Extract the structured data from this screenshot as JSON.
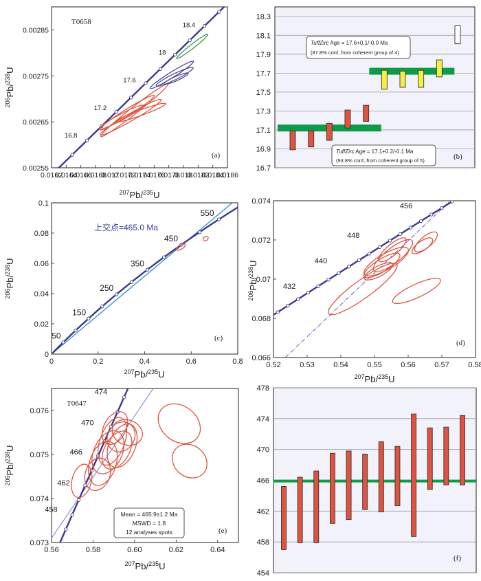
{
  "chart_data": [
    {
      "id": "a",
      "type": "concordia",
      "panel_label": "(a)",
      "sample_label": "T0658",
      "xlabel": "207Pb/235U",
      "ylabel": "206Pb/238U",
      "xlim": [
        0.0162,
        0.0186
      ],
      "ylim": [
        0.00255,
        0.0029
      ],
      "x_ticks": [
        "0.0162",
        "0.0164",
        "0.0166",
        "0.0168",
        "0.017",
        "0.0172",
        "0.0174",
        "0.0176",
        "0.0178",
        "0.018",
        "0.0182",
        "0.0184",
        "0.0186"
      ],
      "x_tick_values": [
        0.0162,
        0.0164,
        0.0166,
        0.0168,
        0.017,
        0.0172,
        0.0174,
        0.0176,
        0.0178,
        0.018,
        0.0182,
        0.0184,
        0.0186
      ],
      "y_ticks": [
        "0.00255",
        "0.00265",
        "0.00275",
        "0.00285"
      ],
      "y_tick_values": [
        0.00255,
        0.00265,
        0.00275,
        0.00285
      ],
      "concordia_labels": [
        {
          "text": "16.8",
          "x": 0.01657,
          "y": 0.00261
        },
        {
          "text": "17.2",
          "x": 0.01697,
          "y": 0.00267
        },
        {
          "text": "17.6",
          "x": 0.01737,
          "y": 0.00273
        },
        {
          "text": "18",
          "x": 0.01778,
          "y": 0.00279
        },
        {
          "text": "18.4",
          "x": 0.01818,
          "y": 0.00285
        }
      ],
      "ellipses": [
        {
          "color": "#e0533f",
          "cx": 0.01733,
          "cy": 0.002675,
          "rx": 0.00058,
          "ry": 7.5e-06,
          "angle": -38
        },
        {
          "color": "#e0533f",
          "cx": 0.01723,
          "cy": 0.00267,
          "rx": 0.00044,
          "ry": 7e-06,
          "angle": -32
        },
        {
          "color": "#e0533f",
          "cx": 0.01715,
          "cy": 0.00266,
          "rx": 0.00034,
          "ry": 6.5e-06,
          "angle": -28
        },
        {
          "color": "#e0533f",
          "cx": 0.01742,
          "cy": 0.00267,
          "rx": 0.00036,
          "ry": 6e-06,
          "angle": -20
        },
        {
          "color": "#e0533f",
          "cx": 0.01728,
          "cy": 0.00266,
          "rx": 0.00048,
          "ry": 8e-06,
          "angle": -30
        },
        {
          "color": "#4a4aa0",
          "cx": 0.01788,
          "cy": 0.002748,
          "rx": 0.00028,
          "ry": 6.5e-06,
          "angle": -26
        },
        {
          "color": "#4a4aa0",
          "cx": 0.0179,
          "cy": 0.002744,
          "rx": 0.00018,
          "ry": 4.8e-06,
          "angle": -24
        },
        {
          "color": "#4a4aa0",
          "cx": 0.01784,
          "cy": 0.002752,
          "rx": 0.00035,
          "ry": 6e-06,
          "angle": -32
        },
        {
          "color": "#3a9a4a",
          "cx": 0.01812,
          "cy": 0.002814,
          "rx": 0.00027,
          "ry": 3.8e-06,
          "angle": -38
        }
      ]
    },
    {
      "id": "b",
      "type": "weighted-mean",
      "panel_label": "(b)",
      "ylim": [
        16.7,
        18.4
      ],
      "y_ticks": [
        "16.7",
        "16.9",
        "17.1",
        "17.3",
        "17.5",
        "17.7",
        "17.9",
        "18.1",
        "18.3"
      ],
      "y_tick_values": [
        16.7,
        16.9,
        17.1,
        17.3,
        17.5,
        17.7,
        17.9,
        18.1,
        18.3
      ],
      "bars": [
        {
          "low": 16.89,
          "high": 17.09,
          "color": "#e0533f"
        },
        {
          "low": 16.92,
          "high": 17.09,
          "color": "#e0533f"
        },
        {
          "low": 16.99,
          "high": 17.17,
          "color": "#e0533f"
        },
        {
          "low": 17.12,
          "high": 17.31,
          "color": "#e0533f"
        },
        {
          "low": 17.19,
          "high": 17.36,
          "color": "#e0533f"
        },
        {
          "low": 17.53,
          "high": 17.73,
          "color": "#f5ee44"
        },
        {
          "low": 17.55,
          "high": 17.72,
          "color": "#f5ee44"
        },
        {
          "low": 17.55,
          "high": 17.73,
          "color": "#f5ee44"
        },
        {
          "low": 17.66,
          "high": 17.84,
          "color": "#f5ee44"
        },
        {
          "low": 18.01,
          "high": 18.2,
          "color": "#ffffff"
        }
      ],
      "mean_bands": [
        {
          "value": 17.12,
          "from_bar": 0,
          "to_bar": 4
        },
        {
          "value": 17.72,
          "from_bar": 5,
          "to_bar": 8
        }
      ],
      "annotations": [
        {
          "italic": "TuffZirc",
          "line1": "Age = 17.6+0.1/-0.0  Ma",
          "line2": "(87.8% conf, from coherent group of 4)"
        },
        {
          "italic": "TuffZirc",
          "line1": "Age = 17.1+0.2/-0.1  Ma",
          "line2": "(93.8% conf, from coherent group of 5)"
        }
      ]
    },
    {
      "id": "c",
      "type": "concordia",
      "panel_label": "(c)",
      "xlabel": "207Pb/235U",
      "ylabel": "206Pb/238U",
      "xlim": [
        0,
        0.8
      ],
      "ylim": [
        0,
        0.1
      ],
      "x_ticks": [
        "0",
        "0.2",
        "0.4",
        "0.6",
        "0.8"
      ],
      "x_tick_values": [
        0,
        0.2,
        0.4,
        0.6,
        0.8
      ],
      "y_ticks": [
        "0",
        "0.02",
        "0.04",
        "0.06",
        "0.08",
        "0.1"
      ],
      "y_tick_values": [
        0,
        0.02,
        0.04,
        0.06,
        0.08,
        0.1
      ],
      "concordia_labels": [
        {
          "text": "50",
          "x": 0.052,
          "y": 0.0079
        },
        {
          "text": "150",
          "x": 0.16,
          "y": 0.0235
        },
        {
          "text": "250",
          "x": 0.278,
          "y": 0.0396
        },
        {
          "text": "350",
          "x": 0.41,
          "y": 0.0557
        },
        {
          "text": "450",
          "x": 0.555,
          "y": 0.0723
        },
        {
          "text": "550",
          "x": 0.71,
          "y": 0.0891
        }
      ],
      "intercept_label": "上交点=465.0 Ma",
      "ellipses": [
        {
          "color": "#e0533f",
          "cx": 0.555,
          "cy": 0.0707,
          "rx": 0.022,
          "ry": 0.0009,
          "angle": -30
        },
        {
          "color": "#e0533f",
          "cx": 0.662,
          "cy": 0.0763,
          "rx": 0.012,
          "ry": 0.0006,
          "angle": -30
        }
      ]
    },
    {
      "id": "d",
      "type": "concordia",
      "panel_label": "(d)",
      "xlabel": "207Pb/235U",
      "ylabel": "206Pb/238U",
      "xlim": [
        0.52,
        0.58
      ],
      "ylim": [
        0.066,
        0.074
      ],
      "x_ticks": [
        "0.52",
        "0.53",
        "0.54",
        "0.55",
        "0.56",
        "0.57",
        "0.58"
      ],
      "x_tick_values": [
        0.52,
        0.53,
        0.54,
        0.55,
        0.56,
        0.57,
        0.58
      ],
      "y_ticks": [
        "0.066",
        "0.068",
        "0.07",
        "0.072",
        "0.074"
      ],
      "y_tick_values": [
        0.066,
        0.068,
        0.07,
        0.072,
        0.074
      ],
      "concordia_labels": [
        {
          "text": "432",
          "x": 0.5278,
          "y": 0.0693
        },
        {
          "text": "440",
          "x": 0.5372,
          "y": 0.0706
        },
        {
          "text": "448",
          "x": 0.5468,
          "y": 0.0719
        },
        {
          "text": "456",
          "x": 0.5625,
          "y": 0.0734
        }
      ],
      "ellipses": [
        {
          "color": "#e0533f",
          "cx": 0.5465,
          "cy": 0.0695,
          "rx": 0.0125,
          "ry": 0.00046,
          "angle": -36
        },
        {
          "color": "#e0533f",
          "cx": 0.5522,
          "cy": 0.0707,
          "rx": 0.0062,
          "ry": 0.00032,
          "angle": -32
        },
        {
          "color": "#e0533f",
          "cx": 0.5555,
          "cy": 0.0712,
          "rx": 0.0072,
          "ry": 0.00038,
          "angle": -38
        },
        {
          "color": "#e0533f",
          "cx": 0.5553,
          "cy": 0.0715,
          "rx": 0.0052,
          "ry": 0.00028,
          "angle": -40
        },
        {
          "color": "#e0533f",
          "cx": 0.5535,
          "cy": 0.0709,
          "rx": 0.0075,
          "ry": 0.0004,
          "angle": -30
        },
        {
          "color": "#e0533f",
          "cx": 0.5512,
          "cy": 0.0704,
          "rx": 0.0047,
          "ry": 0.00026,
          "angle": -28
        },
        {
          "color": "#e0533f",
          "cx": 0.5625,
          "cy": 0.0694,
          "rx": 0.0078,
          "ry": 0.00034,
          "angle": -25
        },
        {
          "color": "#e0533f",
          "cx": 0.5642,
          "cy": 0.0717,
          "rx": 0.0036,
          "ry": 0.00024,
          "angle": -35
        },
        {
          "color": "#e0533f",
          "cx": 0.5653,
          "cy": 0.0719,
          "rx": 0.0042,
          "ry": 0.00028,
          "angle": -40
        }
      ]
    },
    {
      "id": "e",
      "type": "concordia",
      "panel_label": "(e)",
      "sample_label": "T0647",
      "xlabel": "207Pb/235U",
      "ylabel": "206Pb/238U",
      "xlim": [
        0.56,
        0.65
      ],
      "ylim": [
        0.073,
        0.0765
      ],
      "x_ticks": [
        "0.56",
        "0.58",
        "0.60",
        "0.62",
        "0.64"
      ],
      "x_tick_values": [
        0.56,
        0.58,
        0.6,
        0.62,
        0.64
      ],
      "y_ticks": [
        "0.073",
        "0.074",
        "0.075",
        "0.076"
      ],
      "y_tick_values": [
        0.073,
        0.074,
        0.075,
        0.076
      ],
      "concordia_labels": [
        {
          "text": "458",
          "x": 0.5645,
          "y": 0.07365
        },
        {
          "text": "462",
          "x": 0.5705,
          "y": 0.07425
        },
        {
          "text": "466",
          "x": 0.5765,
          "y": 0.07495
        },
        {
          "text": "470",
          "x": 0.582,
          "y": 0.07562
        },
        {
          "text": "474",
          "x": 0.5885,
          "y": 0.07632
        }
      ],
      "stats_box": [
        "Mean = 465.9±1.2 Ma",
        "MSWD = 1.8",
        "12 analyses spots"
      ],
      "ellipses": [
        {
          "color": "#e0533f",
          "cx": 0.5745,
          "cy": 0.0744,
          "rx": 0.0082,
          "ry": 0.00022,
          "angle": -76
        },
        {
          "color": "#e0533f",
          "cx": 0.5822,
          "cy": 0.07455,
          "rx": 0.008,
          "ry": 0.00028,
          "angle": -70
        },
        {
          "color": "#e0533f",
          "cx": 0.5847,
          "cy": 0.0748,
          "rx": 0.011,
          "ry": 0.0003,
          "angle": -72
        },
        {
          "color": "#e0533f",
          "cx": 0.5872,
          "cy": 0.07505,
          "rx": 0.011,
          "ry": 0.00032,
          "angle": -65
        },
        {
          "color": "#e0533f",
          "cx": 0.5893,
          "cy": 0.0753,
          "rx": 0.012,
          "ry": 0.00028,
          "angle": -70
        },
        {
          "color": "#e0533f",
          "cx": 0.5915,
          "cy": 0.0751,
          "rx": 0.01,
          "ry": 0.00028,
          "angle": -60
        },
        {
          "color": "#e0533f",
          "cx": 0.594,
          "cy": 0.0752,
          "rx": 0.011,
          "ry": 0.0003,
          "angle": -68
        },
        {
          "color": "#e0533f",
          "cx": 0.5905,
          "cy": 0.0756,
          "rx": 0.0085,
          "ry": 0.00025,
          "angle": -62
        },
        {
          "color": "#e0533f",
          "cx": 0.5935,
          "cy": 0.0754,
          "rx": 0.0075,
          "ry": 0.0003,
          "angle": -58
        },
        {
          "color": "#e0533f",
          "cx": 0.5965,
          "cy": 0.0755,
          "rx": 0.006,
          "ry": 0.00035,
          "angle": -70
        },
        {
          "color": "#e0533f",
          "cx": 0.6215,
          "cy": 0.0757,
          "rx": 0.0085,
          "ry": 0.00052,
          "angle": -52
        },
        {
          "color": "#e0533f",
          "cx": 0.6265,
          "cy": 0.07485,
          "rx": 0.0075,
          "ry": 0.00042,
          "angle": -50
        }
      ]
    },
    {
      "id": "f",
      "type": "weighted-mean",
      "panel_label": "(f)",
      "ylim": [
        454,
        478
      ],
      "y_ticks": [
        "454",
        "458",
        "462",
        "466",
        "470",
        "474",
        "478"
      ],
      "y_tick_values": [
        454,
        458,
        462,
        466,
        470,
        474,
        478
      ],
      "mean_value": 465.9,
      "bars": [
        {
          "low": 457.0,
          "high": 465.2,
          "color": "#e0533f"
        },
        {
          "low": 457.9,
          "high": 466.4,
          "color": "#e0533f"
        },
        {
          "low": 457.9,
          "high": 467.2,
          "color": "#e0533f"
        },
        {
          "low": 460.4,
          "high": 469.5,
          "color": "#e0533f"
        },
        {
          "low": 460.9,
          "high": 469.8,
          "color": "#e0533f"
        },
        {
          "low": 462.2,
          "high": 469.4,
          "color": "#e0533f"
        },
        {
          "low": 461.9,
          "high": 471.0,
          "color": "#e0533f"
        },
        {
          "low": 462.7,
          "high": 470.4,
          "color": "#e0533f"
        },
        {
          "low": 458.7,
          "high": 474.6,
          "color": "#e0533f"
        },
        {
          "low": 464.8,
          "high": 472.8,
          "color": "#e0533f"
        },
        {
          "low": 465.4,
          "high": 472.9,
          "color": "#e0533f"
        },
        {
          "low": 465.4,
          "high": 474.4,
          "color": "#e0533f"
        }
      ]
    }
  ]
}
